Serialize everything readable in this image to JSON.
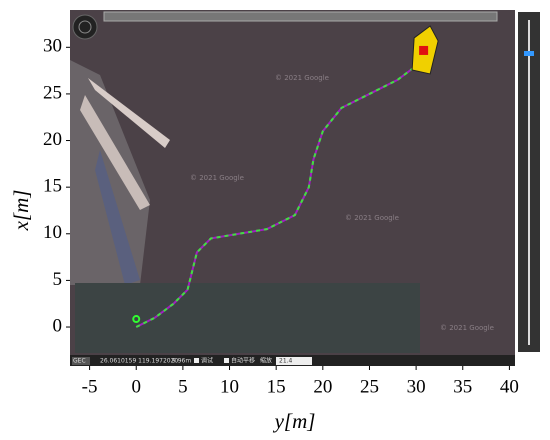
{
  "chart_data": {
    "type": "line",
    "xlabel": "y[m]",
    "ylabel": "x[m]",
    "x": [
      0,
      2,
      4,
      5.5,
      6,
      6.5,
      8,
      11,
      14,
      17,
      18.5,
      19,
      20,
      22,
      25,
      28,
      30
    ],
    "series": [
      {
        "color": "#a020c0",
        "values": [
          0,
          1,
          2.5,
          4,
          6,
          8,
          9.5,
          10,
          10.5,
          12,
          15,
          18,
          21,
          23.5,
          25,
          26.5,
          28
        ]
      }
    ],
    "xlim": [
      -7.1,
      40.6
    ],
    "ylim": [
      -3,
      34
    ],
    "xticks": [
      -5,
      0,
      5,
      10,
      15,
      20,
      25,
      30,
      35,
      40
    ],
    "yticks": [
      0,
      5,
      10,
      15,
      20,
      25,
      30
    ]
  },
  "ui": {
    "mode": "GEC",
    "coords": "26.0610159 119.1972020",
    "distance": "9.96m",
    "debug": "调试",
    "autopan": "自动平移",
    "zoom": "缩放",
    "zoom_value": "21.4",
    "watermark": "© 2021 Google"
  }
}
